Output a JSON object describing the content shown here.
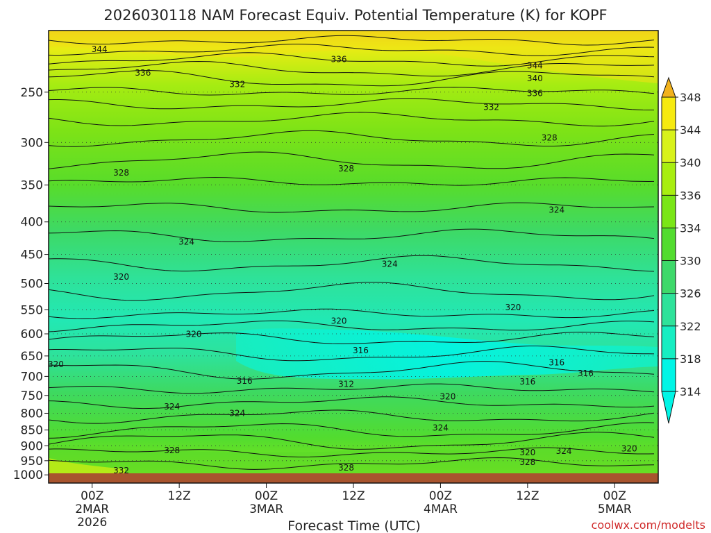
{
  "chart_data": {
    "type": "heatmap",
    "title": "2026030118 NAM Forecast Equiv. Potential Temperature (K) for KOPF",
    "xlabel": "Forecast Time (UTC)",
    "ylabel": "",
    "credit": "coolwx.com/modelts",
    "x_ticks": [
      {
        "hour": 6,
        "lines": [
          "00Z",
          "2MAR",
          "2026"
        ]
      },
      {
        "hour": 18,
        "lines": [
          "12Z"
        ]
      },
      {
        "hour": 30,
        "lines": [
          "00Z",
          "3MAR"
        ]
      },
      {
        "hour": 42,
        "lines": [
          "12Z"
        ]
      },
      {
        "hour": 54,
        "lines": [
          "00Z",
          "4MAR"
        ]
      },
      {
        "hour": 66,
        "lines": [
          "12Z"
        ]
      },
      {
        "hour": 78,
        "lines": [
          "00Z",
          "5MAR"
        ]
      }
    ],
    "xlim": [
      0,
      84
    ],
    "y_ticks": [
      250,
      300,
      350,
      400,
      450,
      500,
      550,
      600,
      650,
      700,
      750,
      800,
      850,
      900,
      950,
      1000
    ],
    "ylim": [
      200,
      1030
    ],
    "y_scale": "log",
    "grid": "dotted",
    "colorbar": {
      "levels": [
        314,
        318,
        322,
        326,
        330,
        334,
        336,
        340,
        344,
        348
      ],
      "colors": [
        "#00f5e6",
        "#16eec2",
        "#2ee29a",
        "#3ed96a",
        "#52dc2f",
        "#7ae616",
        "#a8ee10",
        "#d8f21a",
        "#f6ea10",
        "#f2b21c"
      ],
      "extends": "both"
    },
    "contour_labels": [
      {
        "value": "344",
        "hour": 7,
        "pressure": 214
      },
      {
        "value": "336",
        "hour": 13,
        "pressure": 233
      },
      {
        "value": "332",
        "hour": 26,
        "pressure": 243
      },
      {
        "value": "336",
        "hour": 40,
        "pressure": 222
      },
      {
        "value": "344",
        "hour": 67,
        "pressure": 227
      },
      {
        "value": "340",
        "hour": 67,
        "pressure": 238
      },
      {
        "value": "336",
        "hour": 67,
        "pressure": 251
      },
      {
        "value": "332",
        "hour": 61,
        "pressure": 264
      },
      {
        "value": "328",
        "hour": 69,
        "pressure": 295
      },
      {
        "value": "328",
        "hour": 10,
        "pressure": 335
      },
      {
        "value": "328",
        "hour": 41,
        "pressure": 330
      },
      {
        "value": "324",
        "hour": 70,
        "pressure": 383
      },
      {
        "value": "324",
        "hour": 19,
        "pressure": 430
      },
      {
        "value": "324",
        "hour": 47,
        "pressure": 466
      },
      {
        "value": "320",
        "hour": 10,
        "pressure": 488
      },
      {
        "value": "320",
        "hour": 64,
        "pressure": 545
      },
      {
        "value": "320",
        "hour": 40,
        "pressure": 573
      },
      {
        "value": "320",
        "hour": 20,
        "pressure": 601
      },
      {
        "value": "316",
        "hour": 43,
        "pressure": 637
      },
      {
        "value": "316",
        "hour": 70,
        "pressure": 666
      },
      {
        "value": "316",
        "hour": 74,
        "pressure": 692
      },
      {
        "value": "316",
        "hour": 27,
        "pressure": 712
      },
      {
        "value": "312",
        "hour": 41,
        "pressure": 720
      },
      {
        "value": "316",
        "hour": 66,
        "pressure": 714
      },
      {
        "value": "320",
        "hour": 1,
        "pressure": 670
      },
      {
        "value": "320",
        "hour": 55,
        "pressure": 753
      },
      {
        "value": "324",
        "hour": 17,
        "pressure": 781
      },
      {
        "value": "324",
        "hour": 26,
        "pressure": 800
      },
      {
        "value": "324",
        "hour": 54,
        "pressure": 843
      },
      {
        "value": "328",
        "hour": 17,
        "pressure": 915
      },
      {
        "value": "328",
        "hour": 41,
        "pressure": 975
      },
      {
        "value": "328",
        "hour": 66,
        "pressure": 955
      },
      {
        "value": "324",
        "hour": 71,
        "pressure": 918
      },
      {
        "value": "320",
        "hour": 66,
        "pressure": 922
      },
      {
        "value": "320",
        "hour": 80,
        "pressure": 910
      },
      {
        "value": "332",
        "hour": 10,
        "pressure": 985
      }
    ]
  }
}
